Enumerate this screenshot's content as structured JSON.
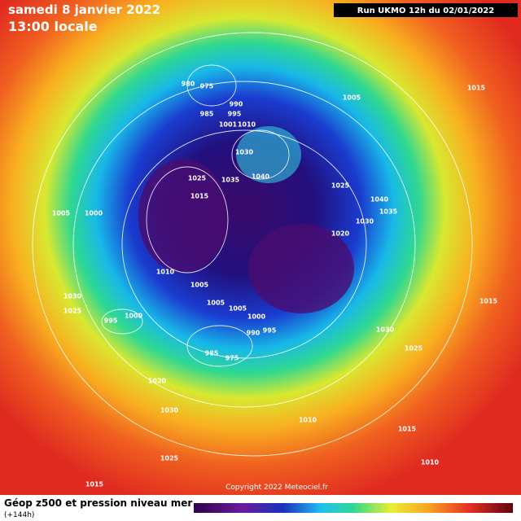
{
  "header": {
    "date": "samedi 8 janvier 2022",
    "time": "13:00 locale",
    "run": "Run UKMO 12h du 02/01/2022"
  },
  "footer": {
    "title": "Géop z500 et pression niveau mer",
    "lead": "(+144h)",
    "copyright": "Copyright 2022 Meteociel.fr"
  },
  "isobar_labels": [
    "980",
    "975",
    "985",
    "990",
    "995",
    "1005",
    "1001",
    "1010",
    "1030",
    "1040",
    "1035",
    "1025",
    "1015",
    "1025",
    "1040",
    "1035",
    "1030",
    "1020",
    "1005",
    "1000",
    "1010",
    "1005",
    "1005",
    "1005",
    "1000",
    "995",
    "990",
    "975",
    "985",
    "1000",
    "995",
    "1030",
    "1025",
    "1020",
    "1030",
    "1025",
    "1015",
    "1015",
    "1015",
    "1030",
    "1025",
    "1015",
    "1010",
    "1010"
  ]
}
